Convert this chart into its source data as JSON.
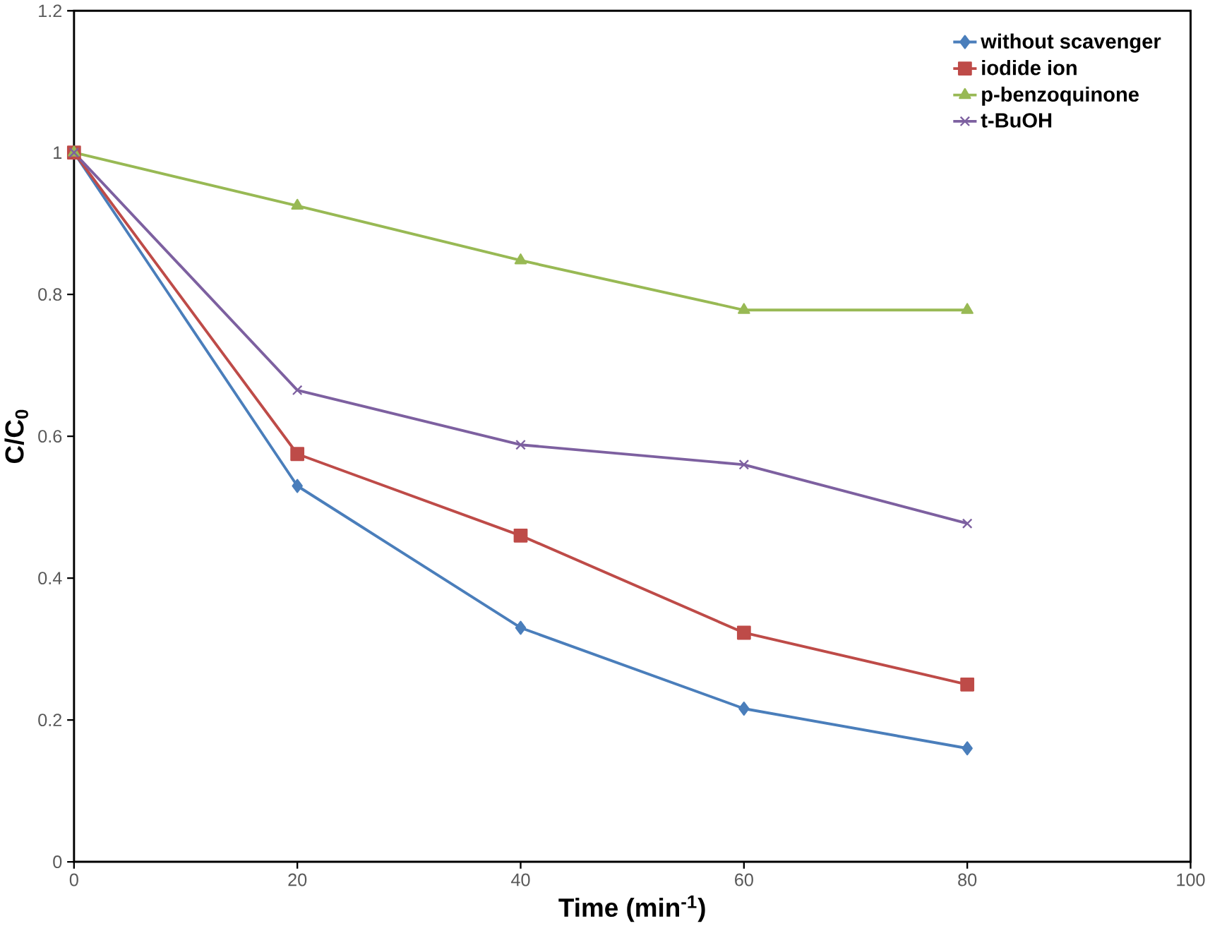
{
  "chart_data": {
    "type": "line",
    "xlabel": "Time (min$^{-1}$)",
    "ylabel": "C/C$_{0}$",
    "x": [
      0,
      20,
      40,
      60,
      80
    ],
    "series": [
      {
        "name": "without scavenger",
        "color": "#4a7ebb",
        "marker": "diamond",
        "values": [
          1,
          0.53,
          0.33,
          0.216,
          0.16
        ]
      },
      {
        "name": "iodide ion",
        "color": "#be4b48",
        "marker": "square",
        "values": [
          1,
          0.575,
          0.46,
          0.323,
          0.25
        ]
      },
      {
        "name": "p-benzoquinone",
        "color": "#98b954",
        "marker": "triangle",
        "values": [
          1,
          0.925,
          0.848,
          0.778,
          0.778
        ]
      },
      {
        "name": "t-BuOH",
        "color": "#7d60a0",
        "marker": "cross",
        "values": [
          1,
          0.665,
          0.588,
          0.56,
          0.477
        ]
      }
    ],
    "xlim": [
      0,
      100
    ],
    "xticks": [
      0,
      20,
      40,
      60,
      80,
      100
    ],
    "ylim": [
      0,
      1.2
    ],
    "yticks": [
      0,
      0.2,
      0.4,
      0.6,
      0.8,
      1,
      1.2
    ],
    "grid": false,
    "legend": "top right",
    "line_style": "solid"
  }
}
